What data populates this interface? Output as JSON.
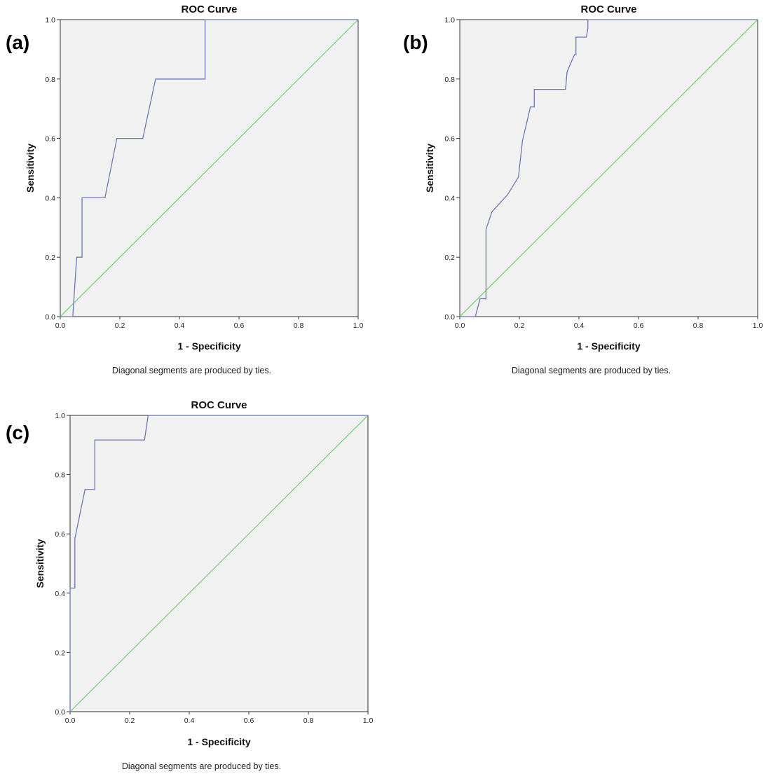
{
  "chart_data": [
    {
      "panel_label": "(a)",
      "type": "line",
      "title": "ROC Curve",
      "xlabel": "1 - Specificity",
      "ylabel": "Sensitivity",
      "footnote": "Diagonal segments are produced by ties.",
      "xlim": [
        0,
        1
      ],
      "ylim": [
        0,
        1
      ],
      "x_ticks": [
        "0.0",
        "0.2",
        "0.4",
        "0.6",
        "0.8",
        "1.0"
      ],
      "y_ticks": [
        "0.0",
        "0.2",
        "0.4",
        "0.6",
        "0.8",
        "1.0"
      ],
      "grid": false,
      "colors": {
        "roc": "#6b78b4",
        "reference": "#7fd07f",
        "plot_bg": "#f1f1f1"
      },
      "series": [
        {
          "x": [
            0.0,
            0.042,
            0.055,
            0.073,
            0.073,
            0.15,
            0.19,
            0.277,
            0.32,
            0.486,
            0.486,
            1.0
          ],
          "y": [
            0.0,
            0.0,
            0.2,
            0.2,
            0.4,
            0.4,
            0.6,
            0.6,
            0.8,
            0.8,
            1.0,
            1.0
          ]
        },
        {
          "x": [
            0,
            1
          ],
          "y": [
            0,
            1
          ]
        }
      ]
    },
    {
      "panel_label": "(b)",
      "type": "line",
      "title": "ROC Curve",
      "xlabel": "1 - Specificity",
      "ylabel": "Sensitivity",
      "footnote": "Diagonal segments are produced by ties.",
      "xlim": [
        0,
        1
      ],
      "ylim": [
        0,
        1
      ],
      "x_ticks": [
        "0.0",
        "0.2",
        "0.4",
        "0.6",
        "0.8",
        "1.0"
      ],
      "y_ticks": [
        "0.0",
        "0.2",
        "0.4",
        "0.6",
        "0.8",
        "1.0"
      ],
      "grid": false,
      "colors": {
        "roc": "#6b78b4",
        "reference": "#7fd07f",
        "plot_bg": "#f1f1f1"
      },
      "series": [
        {
          "x": [
            0.0,
            0.052,
            0.068,
            0.088,
            0.088,
            0.108,
            0.16,
            0.197,
            0.21,
            0.237,
            0.25,
            0.25,
            0.355,
            0.36,
            0.385,
            0.39,
            0.39,
            0.425,
            0.43,
            0.43,
            1.0
          ],
          "y": [
            0.0,
            0.0,
            0.06,
            0.06,
            0.294,
            0.353,
            0.41,
            0.47,
            0.59,
            0.706,
            0.706,
            0.765,
            0.765,
            0.824,
            0.882,
            0.882,
            0.941,
            0.941,
            0.97,
            1.0,
            1.0
          ]
        },
        {
          "x": [
            0,
            1
          ],
          "y": [
            0,
            1
          ]
        }
      ]
    },
    {
      "panel_label": "(c)",
      "type": "line",
      "title": "ROC Curve",
      "xlabel": "1 - Specificity",
      "ylabel": "Sensitivity",
      "footnote": "Diagonal segments are produced by ties.",
      "xlim": [
        0,
        1
      ],
      "ylim": [
        0,
        1
      ],
      "x_ticks": [
        "0.0",
        "0.2",
        "0.4",
        "0.6",
        "0.8",
        "1.0"
      ],
      "y_ticks": [
        "0.0",
        "0.2",
        "0.4",
        "0.6",
        "0.8",
        "1.0"
      ],
      "grid": false,
      "colors": {
        "roc": "#6b78b4",
        "reference": "#7fd07f",
        "plot_bg": "#f1f1f1"
      },
      "series": [
        {
          "x": [
            0.0,
            0.0,
            0.016,
            0.016,
            0.033,
            0.033,
            0.05,
            0.066,
            0.083,
            0.083,
            0.25,
            0.262,
            1.0
          ],
          "y": [
            0.0,
            0.417,
            0.417,
            0.583,
            0.667,
            0.667,
            0.75,
            0.75,
            0.75,
            0.917,
            0.917,
            1.0,
            1.0
          ]
        },
        {
          "x": [
            0,
            1
          ],
          "y": [
            0,
            1
          ]
        }
      ]
    }
  ]
}
